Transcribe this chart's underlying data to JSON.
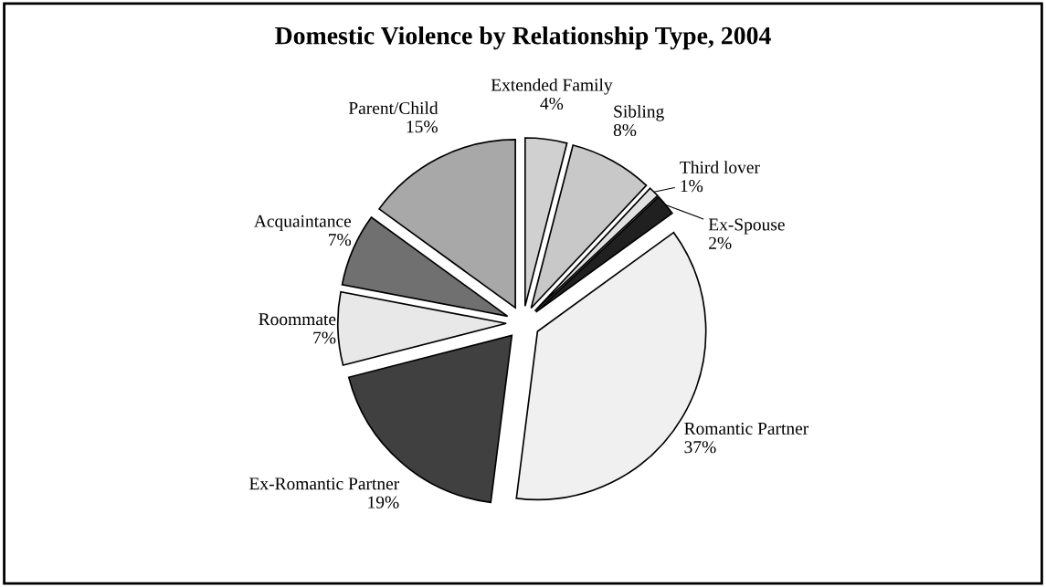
{
  "chart_data": {
    "type": "pie",
    "title": "Domestic Violence by Relationship Type, 2004",
    "categories": [
      "Extended Family",
      "Sibling",
      "Third lover",
      "Ex-Spouse",
      "Romantic Partner",
      "Ex-Romantic Partner",
      "Roommate",
      "Acquaintance",
      "Parent/Child"
    ],
    "values": [
      4,
      8,
      1,
      2,
      37,
      19,
      7,
      7,
      15
    ],
    "value_labels": [
      "4%",
      "8%",
      "1%",
      "2%",
      "37%",
      "19%",
      "7%",
      "7%",
      "15%"
    ],
    "colors": [
      "#d0d0d0",
      "#c8c8c8",
      "#e0e0e0",
      "#202020",
      "#f0f0f0",
      "#404040",
      "#e8e8e8",
      "#707070",
      "#a8a8a8"
    ],
    "legend": false
  }
}
